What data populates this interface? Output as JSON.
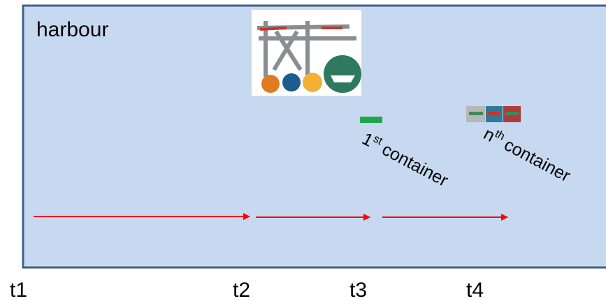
{
  "title": "harbour",
  "containers": [
    {
      "ordinal": "1",
      "suffix": "st",
      "label": "container"
    },
    {
      "ordinal": "n",
      "suffix": "th",
      "label": "container"
    }
  ],
  "times": [
    "t1",
    "t2",
    "t3",
    "t4"
  ]
}
